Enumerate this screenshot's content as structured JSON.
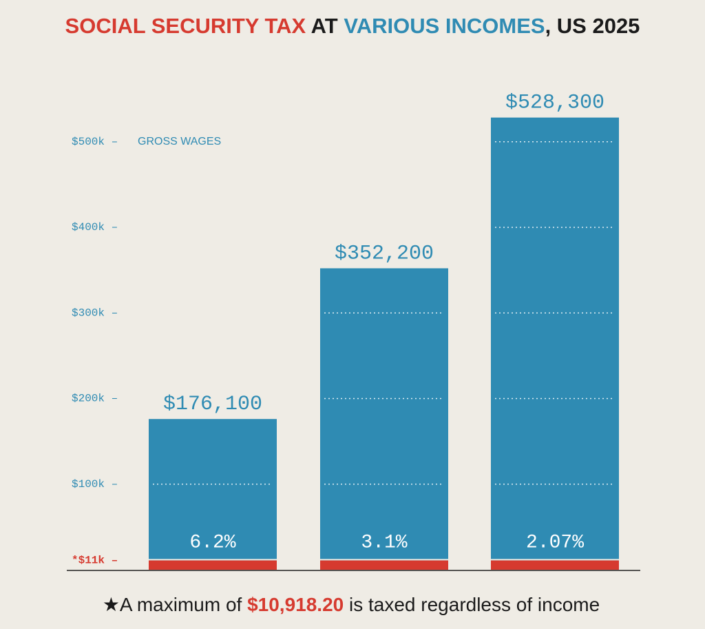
{
  "chart_data": {
    "type": "bar",
    "title_parts": [
      {
        "text": "SOCIAL SECURITY TAX",
        "color": "#d63a2f"
      },
      {
        "text": " AT ",
        "color": "#1a1a1a"
      },
      {
        "text": "VARIOUS INCOMES",
        "color": "#2f8bb3"
      },
      {
        "text": ", US 2025",
        "color": "#1a1a1a"
      }
    ],
    "y_label": "GROSS WAGES",
    "ylim": [
      0,
      660000
    ],
    "yticks": [
      {
        "value": 11000,
        "label": "*$11k –",
        "color": "#d63a2f"
      },
      {
        "value": 100000,
        "label": "$100k –"
      },
      {
        "value": 200000,
        "label": "$200k –"
      },
      {
        "value": 300000,
        "label": "$300k –"
      },
      {
        "value": 400000,
        "label": "$400k –"
      },
      {
        "value": 500000,
        "label": "$500k –"
      }
    ],
    "series": [
      {
        "color": "#2f8bb3",
        "values": [
          176100,
          352200,
          528300
        ],
        "value_labels": [
          "$176,100",
          "$352,200",
          "$528,300"
        ]
      },
      {
        "color": "#d63a2f",
        "values": [
          10918.2,
          10918.2,
          10918.2
        ]
      }
    ],
    "rates": {
      "values": [
        6.2,
        3.1,
        2.07
      ],
      "value_labels": [
        "6.2%",
        "3.1%",
        "2.07%"
      ]
    },
    "footnote_parts": [
      {
        "text": "★A maximum of ",
        "color": "#1a1a1a"
      },
      {
        "text": "$10,918.20",
        "color": "#d63a2f"
      },
      {
        "text": " is taxed regardless of income",
        "color": "#1a1a1a"
      }
    ]
  }
}
